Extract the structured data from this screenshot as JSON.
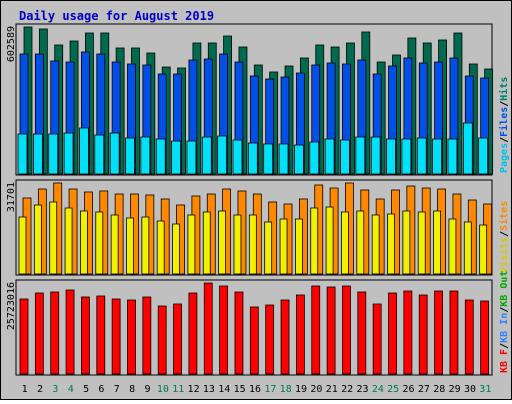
{
  "title": "Daily usage for August 2019",
  "colors": {
    "background": "#c0c0c0",
    "panel": "#ffffff",
    "title": "#0000c8",
    "hits": "#006a4e",
    "files": "#0050e8",
    "pages": "#00e0f8",
    "visits": "#f0f000",
    "sites": "#ff8800",
    "kb_in": "#3080ff",
    "kb_out": "#00a800",
    "kb_f": "#ff0000",
    "day_normal": "#000000",
    "day_weekend": "#007a4a"
  },
  "chart_data": [
    {
      "type": "bar",
      "panel": "top",
      "max_label": "602589",
      "legend": [
        {
          "text": "Pages",
          "color": "#00c0e8"
        },
        {
          "text": "/",
          "color": "#000000"
        },
        {
          "text": "Files",
          "color": "#0050e8"
        },
        {
          "text": "/",
          "color": "#000000"
        },
        {
          "text": "Hits",
          "color": "#008060"
        }
      ],
      "categories": [
        "1",
        "2",
        "3",
        "4",
        "5",
        "6",
        "7",
        "8",
        "9",
        "10",
        "11",
        "12",
        "13",
        "14",
        "15",
        "16",
        "17",
        "18",
        "19",
        "20",
        "21",
        "22",
        "23",
        "24",
        "25",
        "26",
        "27",
        "28",
        "29",
        "30",
        "31"
      ],
      "series": [
        {
          "key": "hits",
          "values": [
            602589,
            595000,
            528000,
            546000,
            576000,
            578000,
            515000,
            517000,
            498000,
            437000,
            435000,
            538000,
            539000,
            566000,
            521000,
            445000,
            420000,
            442000,
            474000,
            529000,
            521000,
            537000,
            582000,
            460000,
            487000,
            558000,
            535000,
            550000,
            580000,
            450000,
            429000
          ]
        },
        {
          "key": "files",
          "values": [
            490000,
            490000,
            465000,
            460000,
            500000,
            490000,
            460000,
            450000,
            447000,
            408000,
            410000,
            467000,
            470000,
            490000,
            458000,
            402000,
            388000,
            397000,
            415000,
            448000,
            456000,
            451000,
            467000,
            410000,
            443000,
            475000,
            455000,
            460000,
            475000,
            400000,
            395000
          ]
        },
        {
          "key": "pages",
          "values": [
            165000,
            165000,
            165000,
            170000,
            190000,
            160000,
            170000,
            147000,
            153000,
            143000,
            137000,
            135000,
            150000,
            157000,
            140000,
            128000,
            122000,
            125000,
            118000,
            130000,
            144000,
            138000,
            150000,
            150000,
            145000,
            145000,
            147000,
            145000,
            145000,
            208000,
            147000
          ]
        }
      ]
    },
    {
      "type": "bar",
      "panel": "middle",
      "max_label": "31701",
      "legend": [
        {
          "text": "Visits",
          "color": "#d8c800"
        },
        {
          "text": "/",
          "color": "#000000"
        },
        {
          "text": "Sites",
          "color": "#ff8800"
        }
      ],
      "series": [
        {
          "key": "sites",
          "values": [
            26500,
            29500,
            31701,
            29500,
            28500,
            29000,
            27800,
            28000,
            27600,
            26200,
            24200,
            27200,
            28000,
            29500,
            29000,
            28000,
            25000,
            24500,
            26000,
            31000,
            30000,
            31701,
            29200,
            26000,
            29300,
            30500,
            29800,
            29500,
            28000,
            25700,
            24500
          ]
        },
        {
          "key": "visits",
          "values": [
            20000,
            24000,
            25000,
            23000,
            22000,
            21500,
            20500,
            19500,
            20000,
            18500,
            17500,
            20500,
            21500,
            22000,
            20500,
            20500,
            18000,
            19000,
            19000,
            23000,
            23500,
            21500,
            22000,
            20500,
            21000,
            22000,
            21500,
            21800,
            19000,
            18000,
            17000
          ]
        }
      ]
    },
    {
      "type": "bar",
      "panel": "bottom",
      "max_label": "25723016",
      "legend": [
        {
          "text": "KB F",
          "color": "#ff0000"
        },
        {
          "text": "/",
          "color": "#000000"
        },
        {
          "text": "KB In",
          "color": "#3080ff"
        },
        {
          "text": "/",
          "color": "#000000"
        },
        {
          "text": "KB Out",
          "color": "#00a800"
        }
      ],
      "series": [
        {
          "key": "kb_f",
          "values": [
            21300000,
            22900000,
            23300000,
            23700000,
            21700000,
            22000000,
            21300000,
            20800000,
            21700000,
            19100000,
            19700000,
            23000000,
            25723016,
            24800000,
            23200000,
            19000000,
            19400000,
            21000000,
            22300000,
            24800000,
            24500000,
            24800000,
            23200000,
            19700000,
            22800000,
            23600000,
            22300000,
            23500000,
            23400000,
            21000000,
            20600000
          ]
        }
      ]
    }
  ],
  "weekend_days": [
    "3",
    "4",
    "10",
    "11",
    "17",
    "18",
    "24",
    "25",
    "31"
  ]
}
